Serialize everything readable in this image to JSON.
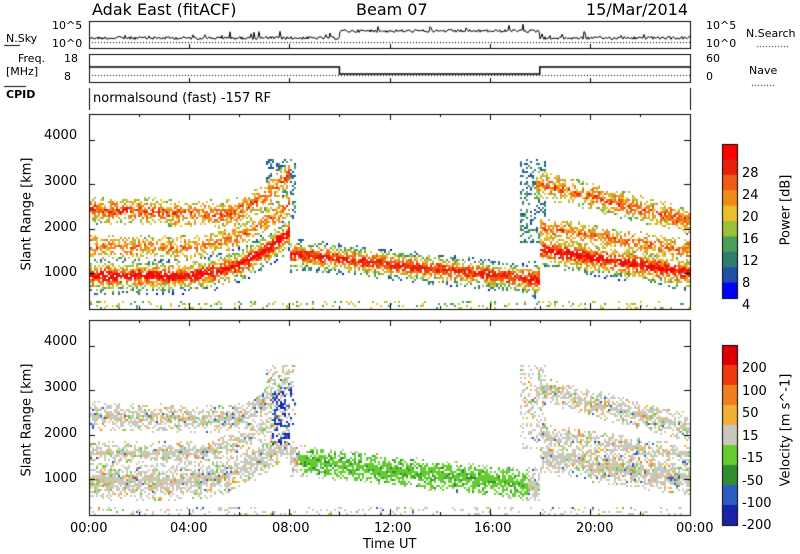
{
  "header": {
    "radar": "Adak East (fitACF)",
    "beam": "Beam 07",
    "date": "15/Mar/2014"
  },
  "noise_panel": {
    "left_label": "N.Sky",
    "right_label": "N.Search",
    "left_ticks": [
      "10^5",
      "10^0"
    ],
    "right_ticks": [
      "10^5",
      "10^0"
    ]
  },
  "freq_panel": {
    "left_label_1": "Freq.",
    "left_label_2": "[MHz]",
    "left_ticks": [
      "18",
      "8"
    ],
    "right_label": "Nave",
    "right_ticks": [
      "60",
      "0"
    ],
    "cpid_label": "CPID",
    "cpid_text": "normalsound (fast) -157 RF"
  },
  "chart_data": [
    {
      "type": "heatmap",
      "name": "power",
      "ylabel": "Slant Range [km]",
      "ylim": [
        180,
        4590
      ],
      "xlim_hours": [
        0,
        24
      ],
      "yticks": [
        "4000",
        "3000",
        "2000",
        "1000"
      ],
      "colorbar_label": "Power [dB]",
      "colorbar_ticks": [
        "28",
        "24",
        "20",
        "16",
        "12",
        "8",
        "4"
      ],
      "colors": [
        "#0000ff",
        "#1f4fa8",
        "#2e7d6e",
        "#4a9e58",
        "#9bc13c",
        "#e8c02a",
        "#f08a1c",
        "#f05a12",
        "#e61e0a",
        "#ff0000"
      ]
    },
    {
      "type": "heatmap",
      "name": "velocity",
      "ylabel": "Slant Range [km]",
      "ylim": [
        180,
        4590
      ],
      "xlim_hours": [
        0,
        24
      ],
      "yticks": [
        "4000",
        "3000",
        "2000",
        "1000"
      ],
      "colorbar_label": "Velocity [m s^-1]",
      "colorbar_ticks": [
        "200",
        "100",
        "50",
        "15",
        "-15",
        "-50",
        "-100",
        "-200"
      ],
      "colors": [
        "#1a22a8",
        "#2e5cc0",
        "#2f8f2f",
        "#64cc30",
        "#c8c8bc",
        "#f3b038",
        "#ef8020",
        "#ef3a10",
        "#dd0000"
      ]
    }
  ],
  "xaxis": {
    "ticks": [
      "00:00",
      "04:00",
      "08:00",
      "12:00",
      "16:00",
      "20:00",
      "00:00"
    ],
    "label": "Time UT"
  }
}
